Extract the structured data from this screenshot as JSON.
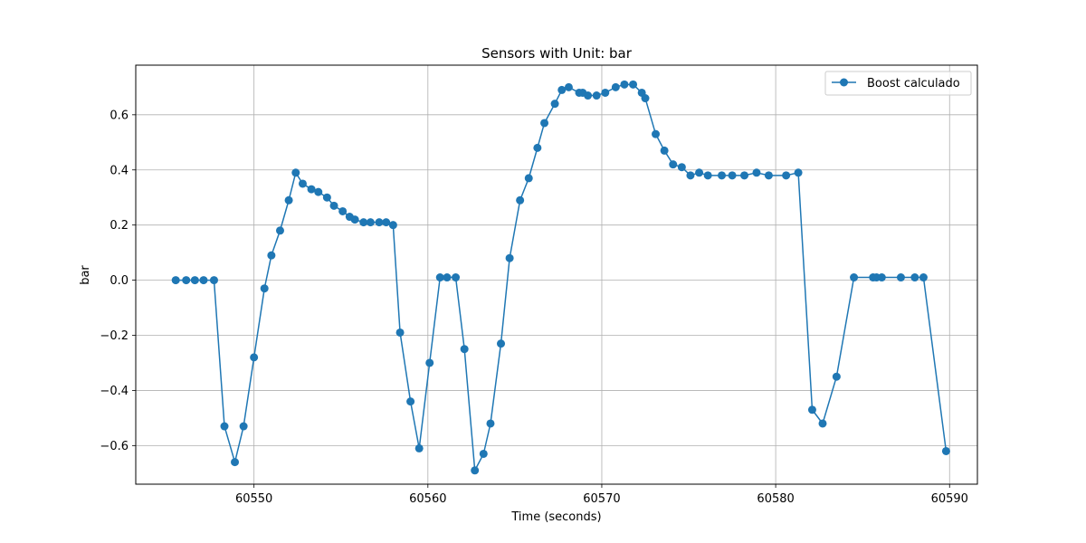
{
  "chart_data": {
    "type": "line",
    "title": "Sensors with Unit: bar",
    "xlabel": "Time (seconds)",
    "ylabel": "bar",
    "xlim": [
      60543.2,
      60591.6
    ],
    "ylim": [
      -0.74,
      0.78
    ],
    "xticks": [
      60550,
      60560,
      60570,
      60580,
      60590
    ],
    "yticks": [
      -0.6,
      -0.4,
      -0.2,
      0.0,
      0.2,
      0.4,
      0.6
    ],
    "xtick_labels": [
      "60550",
      "60560",
      "60570",
      "60580",
      "60590"
    ],
    "ytick_labels": [
      "−0.6",
      "−0.4",
      "−0.2",
      "0.0",
      "0.2",
      "0.4",
      "0.6"
    ],
    "grid": true,
    "legend_position": "top-right",
    "series": [
      {
        "name": "Boost calculado",
        "color": "#1f77b4",
        "marker": "circle",
        "points": [
          [
            60545.5,
            0.0
          ],
          [
            60546.1,
            0.0
          ],
          [
            60546.6,
            0.0
          ],
          [
            60547.1,
            0.0
          ],
          [
            60547.7,
            0.0
          ],
          [
            60548.3,
            -0.53
          ],
          [
            60548.9,
            -0.66
          ],
          [
            60549.4,
            -0.53
          ],
          [
            60550.0,
            -0.28
          ],
          [
            60550.6,
            -0.03
          ],
          [
            60551.0,
            0.09
          ],
          [
            60551.5,
            0.18
          ],
          [
            60552.0,
            0.29
          ],
          [
            60552.4,
            0.39
          ],
          [
            60552.8,
            0.35
          ],
          [
            60553.3,
            0.33
          ],
          [
            60553.7,
            0.32
          ],
          [
            60554.2,
            0.3
          ],
          [
            60554.6,
            0.27
          ],
          [
            60555.1,
            0.25
          ],
          [
            60555.5,
            0.23
          ],
          [
            60555.8,
            0.22
          ],
          [
            60556.3,
            0.21
          ],
          [
            60556.7,
            0.21
          ],
          [
            60557.2,
            0.21
          ],
          [
            60557.6,
            0.21
          ],
          [
            60558.0,
            0.2
          ],
          [
            60558.4,
            -0.19
          ],
          [
            60559.0,
            -0.44
          ],
          [
            60559.5,
            -0.61
          ],
          [
            60560.1,
            -0.3
          ],
          [
            60560.7,
            0.01
          ],
          [
            60561.1,
            0.01
          ],
          [
            60561.6,
            0.01
          ],
          [
            60562.1,
            -0.25
          ],
          [
            60562.7,
            -0.69
          ],
          [
            60563.2,
            -0.63
          ],
          [
            60563.6,
            -0.52
          ],
          [
            60564.2,
            -0.23
          ],
          [
            60564.7,
            0.08
          ],
          [
            60565.3,
            0.29
          ],
          [
            60565.8,
            0.37
          ],
          [
            60566.3,
            0.48
          ],
          [
            60566.7,
            0.57
          ],
          [
            60567.3,
            0.64
          ],
          [
            60567.7,
            0.69
          ],
          [
            60568.1,
            0.7
          ],
          [
            60568.7,
            0.68
          ],
          [
            60568.9,
            0.68
          ],
          [
            60569.2,
            0.67
          ],
          [
            60569.7,
            0.67
          ],
          [
            60570.2,
            0.68
          ],
          [
            60570.8,
            0.7
          ],
          [
            60571.3,
            0.71
          ],
          [
            60571.8,
            0.71
          ],
          [
            60572.3,
            0.68
          ],
          [
            60572.5,
            0.66
          ],
          [
            60573.1,
            0.53
          ],
          [
            60573.6,
            0.47
          ],
          [
            60574.1,
            0.42
          ],
          [
            60574.6,
            0.41
          ],
          [
            60575.1,
            0.38
          ],
          [
            60575.6,
            0.39
          ],
          [
            60576.1,
            0.38
          ],
          [
            60576.9,
            0.38
          ],
          [
            60577.5,
            0.38
          ],
          [
            60578.2,
            0.38
          ],
          [
            60578.9,
            0.39
          ],
          [
            60579.6,
            0.38
          ],
          [
            60580.6,
            0.38
          ],
          [
            60581.3,
            0.39
          ],
          [
            60582.1,
            -0.47
          ],
          [
            60582.7,
            -0.52
          ],
          [
            60583.5,
            -0.35
          ],
          [
            60584.5,
            0.01
          ],
          [
            60585.6,
            0.01
          ],
          [
            60585.8,
            0.01
          ],
          [
            60586.1,
            0.01
          ],
          [
            60587.2,
            0.01
          ],
          [
            60588.0,
            0.01
          ],
          [
            60588.5,
            0.01
          ],
          [
            60589.8,
            -0.62
          ]
        ]
      }
    ]
  }
}
